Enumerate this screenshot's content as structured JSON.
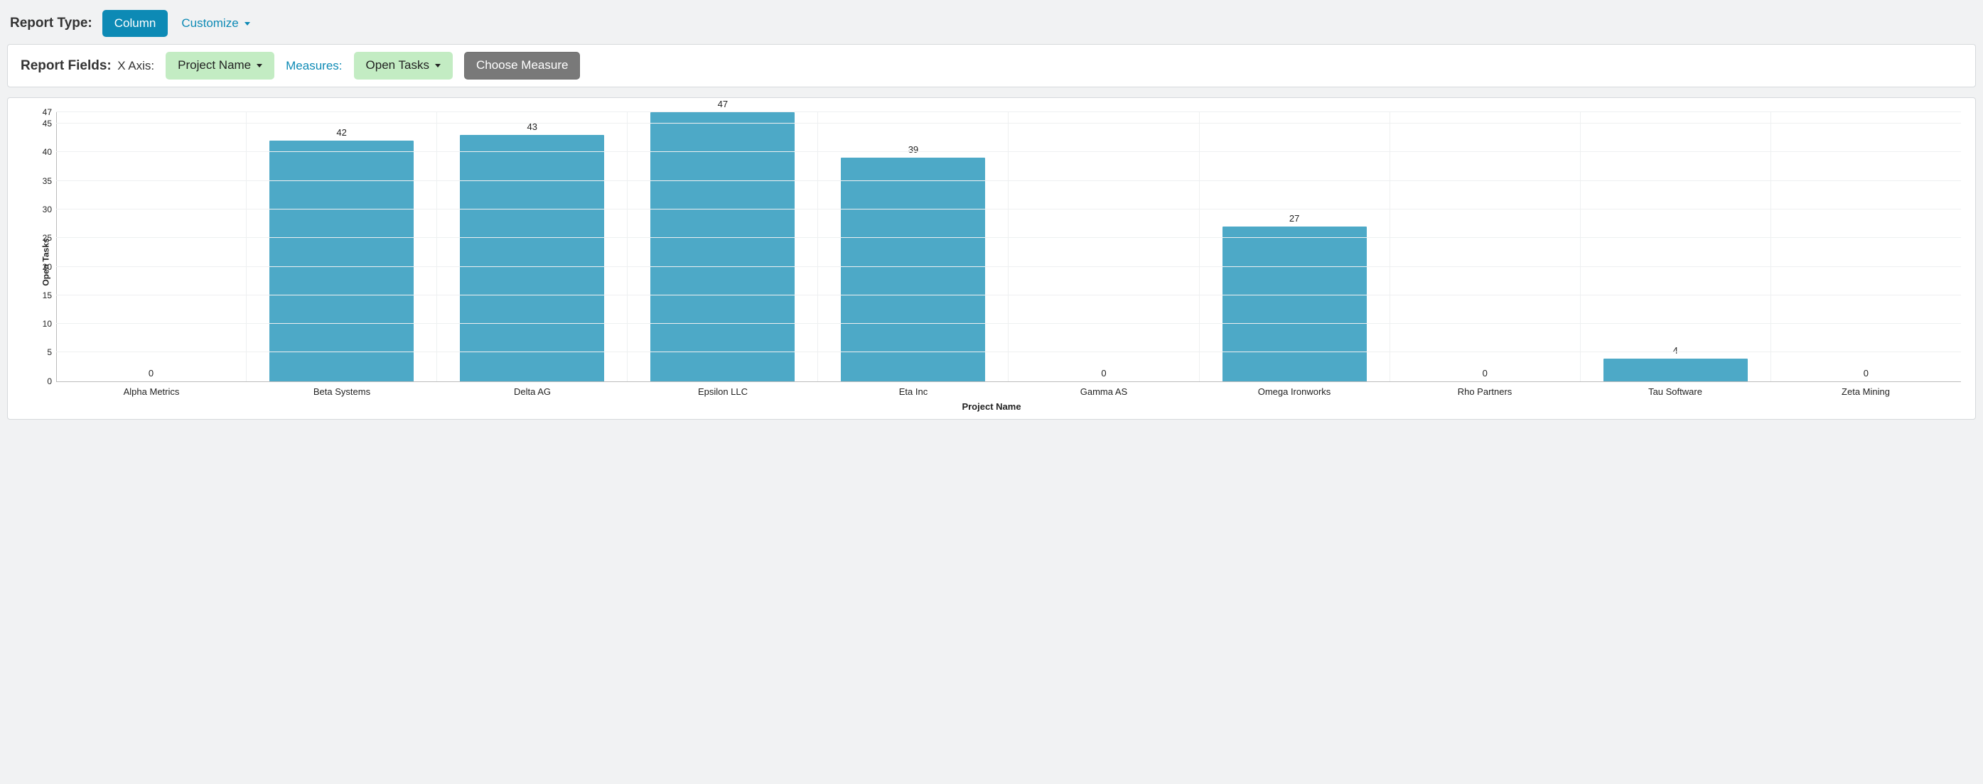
{
  "header": {
    "report_type_label": "Report Type:",
    "column_button": "Column",
    "customize_button": "Customize"
  },
  "fields": {
    "report_fields_label": "Report Fields:",
    "x_axis_label": "X Axis:",
    "x_axis_value": "Project Name",
    "measures_label": "Measures:",
    "measure_value": "Open Tasks",
    "choose_measure_button": "Choose Measure"
  },
  "chart": {
    "type": "bar",
    "y_title": "Open Tasks",
    "x_title": "Project Name",
    "y_ticks": [
      0,
      5,
      10,
      15,
      20,
      25,
      30,
      35,
      40,
      45,
      47
    ],
    "y_max": 47,
    "bar_color": "#4da9c7",
    "grid_color": "#eef0f1",
    "axis_color": "#bbbbbb",
    "background_color": "#ffffff",
    "label_fontsize": 13,
    "title_fontsize": 12,
    "bars": [
      {
        "label": "Alpha Metrics",
        "value": 0
      },
      {
        "label": "Beta Systems",
        "value": 42
      },
      {
        "label": "Delta AG",
        "value": 43
      },
      {
        "label": "Epsilon LLC",
        "value": 47
      },
      {
        "label": "Eta Inc",
        "value": 39
      },
      {
        "label": "Gamma AS",
        "value": 0
      },
      {
        "label": "Omega Ironworks",
        "value": 27
      },
      {
        "label": "Rho Partners",
        "value": 0
      },
      {
        "label": "Tau Software",
        "value": 4
      },
      {
        "label": "Zeta Mining",
        "value": 0
      }
    ]
  }
}
